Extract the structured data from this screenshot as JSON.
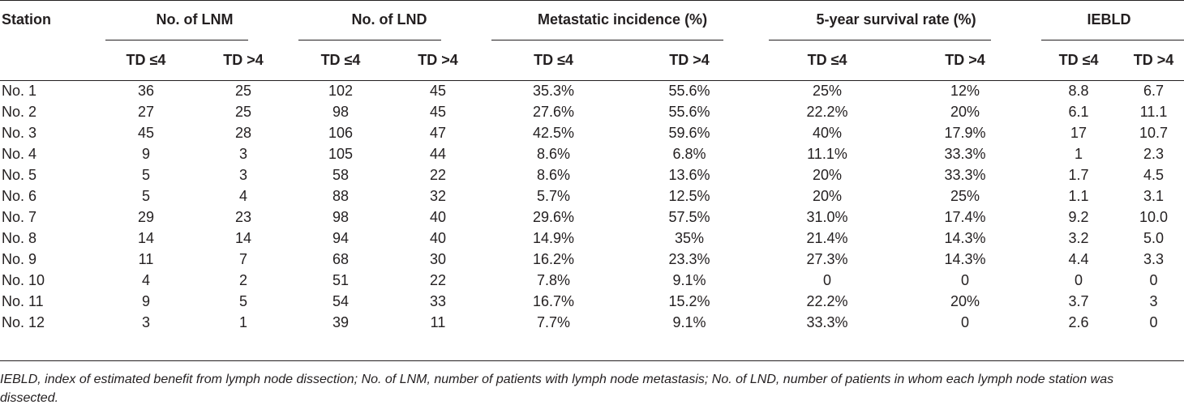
{
  "table": {
    "header_top": {
      "station": "Station",
      "groups": [
        {
          "label": "No. of LNM"
        },
        {
          "label": "No. of LND"
        },
        {
          "label": "Metastatic incidence (%)"
        },
        {
          "label": "5-year survival rate (%)"
        },
        {
          "label": "IEBLD"
        }
      ]
    },
    "subheaders": [
      "TD ≤4",
      "TD >4",
      "TD ≤4",
      "TD >4",
      "TD ≤4",
      "TD >4",
      "TD ≤4",
      "TD >4",
      "TD ≤4",
      "TD >4"
    ],
    "rows": [
      {
        "station": "No. 1",
        "cells": [
          "36",
          "25",
          "102",
          "45",
          "35.3%",
          "55.6%",
          "25%",
          "12%",
          "8.8",
          "6.7"
        ]
      },
      {
        "station": "No. 2",
        "cells": [
          "27",
          "25",
          "98",
          "45",
          "27.6%",
          "55.6%",
          "22.2%",
          "20%",
          "6.1",
          "11.1"
        ]
      },
      {
        "station": "No. 3",
        "cells": [
          "45",
          "28",
          "106",
          "47",
          "42.5%",
          "59.6%",
          "40%",
          "17.9%",
          "17",
          "10.7"
        ]
      },
      {
        "station": "No. 4",
        "cells": [
          "9",
          "3",
          "105",
          "44",
          "8.6%",
          "6.8%",
          "11.1%",
          "33.3%",
          "1",
          "2.3"
        ]
      },
      {
        "station": "No. 5",
        "cells": [
          "5",
          "3",
          "58",
          "22",
          "8.6%",
          "13.6%",
          "20%",
          "33.3%",
          "1.7",
          "4.5"
        ]
      },
      {
        "station": "No. 6",
        "cells": [
          "5",
          "4",
          "88",
          "32",
          "5.7%",
          "12.5%",
          "20%",
          "25%",
          "1.1",
          "3.1"
        ]
      },
      {
        "station": "No. 7",
        "cells": [
          "29",
          "23",
          "98",
          "40",
          "29.6%",
          "57.5%",
          "31.0%",
          "17.4%",
          "9.2",
          "10.0"
        ]
      },
      {
        "station": "No. 8",
        "cells": [
          "14",
          "14",
          "94",
          "40",
          "14.9%",
          "35%",
          "21.4%",
          "14.3%",
          "3.2",
          "5.0"
        ]
      },
      {
        "station": "No. 9",
        "cells": [
          "11",
          "7",
          "68",
          "30",
          "16.2%",
          "23.3%",
          "27.3%",
          "14.3%",
          "4.4",
          "3.3"
        ]
      },
      {
        "station": "No. 10",
        "cells": [
          "4",
          "2",
          "51",
          "22",
          "7.8%",
          "9.1%",
          "0",
          "0",
          "0",
          "0"
        ]
      },
      {
        "station": "No. 11",
        "cells": [
          "9",
          "5",
          "54",
          "33",
          "16.7%",
          "15.2%",
          "22.2%",
          "20%",
          "3.7",
          "3"
        ]
      },
      {
        "station": "No. 12",
        "cells": [
          "3",
          "1",
          "39",
          "11",
          "7.7%",
          "9.1%",
          "33.3%",
          "0",
          "2.6",
          "0"
        ]
      }
    ]
  },
  "footnote": "IEBLD, index of estimated benefit from lymph node dissection; No. of LNM, number of patients with lymph node metastasis; No. of LND, number of patients in whom each lymph node station was dissected."
}
